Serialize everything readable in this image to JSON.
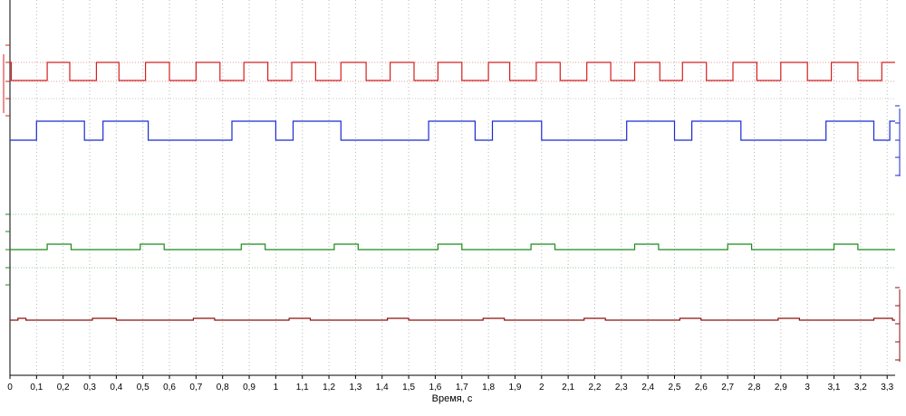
{
  "chart_data": {
    "type": "line",
    "xlabel": "Время, с",
    "xlim": [
      0,
      3.33
    ],
    "x_ticks": [
      "0",
      "0,1",
      "0,2",
      "0,3",
      "0,4",
      "0,5",
      "0,6",
      "0,7",
      "0,8",
      "0,9",
      "1",
      "1,1",
      "1,2",
      "1,3",
      "1,4",
      "1,5",
      "1,6",
      "1,7",
      "1,8",
      "1,9",
      "2",
      "2,1",
      "2,2",
      "2,3",
      "2,4",
      "2,5",
      "2,6",
      "2,7",
      "2,8",
      "2,9",
      "3",
      "3,1",
      "3,2",
      "3,3"
    ],
    "grid": true,
    "series": [
      {
        "color": "#d42020",
        "level_low": 0,
        "level_high": 1,
        "initial_level": 1,
        "transitions": [
          0.005,
          0.14,
          0.225,
          0.325,
          0.41,
          0.51,
          0.6,
          0.7,
          0.79,
          0.88,
          0.97,
          1.06,
          1.15,
          1.245,
          1.34,
          1.43,
          1.52,
          1.61,
          1.7,
          1.8,
          1.88,
          1.98,
          2.07,
          2.17,
          2.26,
          2.35,
          2.445,
          2.53,
          2.62,
          2.72,
          2.81,
          2.9,
          3.0,
          3.09,
          3.19,
          3.28
        ]
      },
      {
        "color": "#1a2ad4",
        "level_low": 0,
        "level_high": 1,
        "initial_level": 0,
        "transitions": [
          0.1,
          0.28,
          0.35,
          0.52,
          0.835,
          1.0,
          1.065,
          1.245,
          1.575,
          1.75,
          1.815,
          2.0,
          2.32,
          2.5,
          2.565,
          2.75,
          3.07,
          3.25,
          3.31
        ]
      },
      {
        "color": "#1a8a1a",
        "level_low": 0,
        "level_high": 1,
        "initial_level": 0,
        "transitions": [
          0.14,
          0.23,
          0.49,
          0.58,
          0.87,
          0.96,
          1.22,
          1.31,
          1.61,
          1.7,
          1.96,
          2.05,
          2.35,
          2.44,
          2.7,
          2.79,
          3.1,
          3.19
        ]
      },
      {
        "color": "#8b1010",
        "level_low": 0,
        "level_high": 1,
        "initial_level": 0,
        "transitions": [
          0.03,
          0.06,
          0.31,
          0.4,
          0.69,
          0.77,
          1.05,
          1.13,
          1.42,
          1.5,
          1.78,
          1.86,
          2.16,
          2.24,
          2.52,
          2.6,
          2.89,
          2.97,
          3.25,
          3.32
        ]
      }
    ]
  }
}
